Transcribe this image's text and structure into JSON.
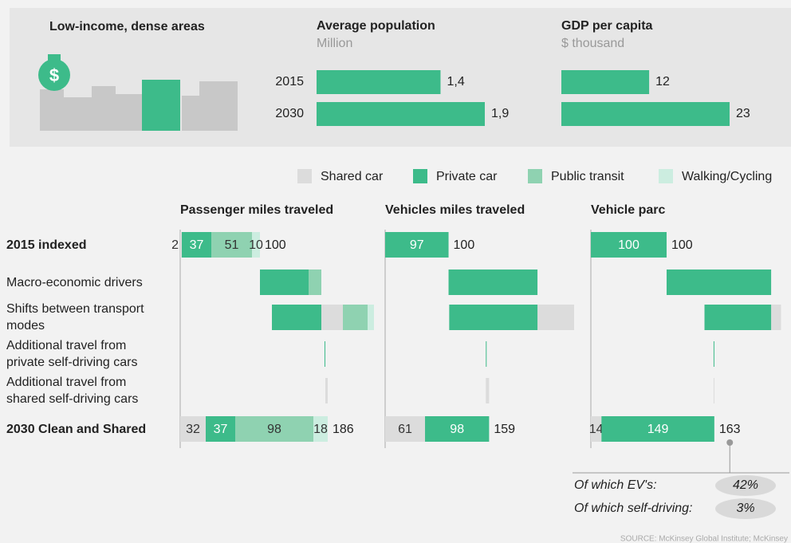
{
  "panel_title": "Low-income, dense areas",
  "legend": [
    {
      "name": "Shared car",
      "color": "#dcdcdc"
    },
    {
      "name": "Private car",
      "color": "#3dbb8a"
    },
    {
      "name": "Public transit",
      "color": "#8fd2b1"
    },
    {
      "name": "Walking/Cycling",
      "color": "#ccede0"
    }
  ],
  "row_labels": [
    "2015 indexed",
    "Macro-economic drivers",
    "Shifts between transport modes",
    "Additional travel from private self-driving cars",
    "Additional travel from shared self-driving cars",
    "2030 Clean and Shared"
  ],
  "chart_data": [
    {
      "type": "hbar",
      "title": "Average population",
      "subtitle": "Million",
      "categories": [
        "2015",
        "2030"
      ],
      "values": [
        1.4,
        1.9
      ],
      "value_labels": [
        "1,4",
        "1,9"
      ],
      "color": "#3dbb8a"
    },
    {
      "type": "hbar",
      "title": "GDP per capita",
      "subtitle": "$ thousand",
      "values": [
        12,
        23
      ],
      "color": "#3dbb8a"
    },
    {
      "type": "waterfall",
      "title": "Passenger miles traveled",
      "rows": [
        {
          "segments": [
            2,
            37,
            51,
            10
          ],
          "total": 100
        },
        {
          "segments": [
            null,
            61,
            16,
            null
          ]
        },
        {
          "segments": [
            27,
            -62,
            31,
            8
          ]
        },
        {
          "segments": [
            null,
            1,
            null,
            null
          ]
        },
        {
          "segments": [
            3,
            null,
            null,
            null
          ]
        },
        {
          "segments": [
            32,
            37,
            98,
            18
          ],
          "total": 186
        }
      ]
    },
    {
      "type": "waterfall",
      "title": "Vehicles miles traveled",
      "rows": [
        {
          "segments": [
            null,
            97,
            null,
            null
          ],
          "total": 100
        },
        {
          "segments": [
            null,
            136,
            null,
            null
          ]
        },
        {
          "segments": [
            56,
            -135,
            null,
            null
          ]
        },
        {
          "segments": [
            null,
            0,
            null,
            null
          ]
        },
        {
          "segments": [
            5,
            null,
            null,
            null
          ]
        },
        {
          "segments": [
            61,
            98,
            null,
            null
          ],
          "total": 159
        }
      ]
    },
    {
      "type": "waterfall",
      "title": "Vehicle parc",
      "rows": [
        {
          "segments": [
            null,
            100,
            null,
            null
          ],
          "total": 100
        },
        {
          "segments": [
            null,
            138,
            null,
            null
          ]
        },
        {
          "segments": [
            13,
            -88,
            null,
            null
          ]
        },
        {
          "segments": [
            null,
            -1,
            null,
            null
          ]
        },
        {
          "segments": [
            1,
            null,
            null,
            null
          ]
        },
        {
          "segments": [
            14,
            149,
            null,
            null
          ],
          "total": 163
        }
      ]
    }
  ],
  "notes": [
    {
      "label": "Of which EV's:",
      "value": "42%"
    },
    {
      "label": "Of which self-driving:",
      "value": "3%"
    }
  ],
  "source": "SOURCE: McKinsey Global Institute; McKinsey"
}
